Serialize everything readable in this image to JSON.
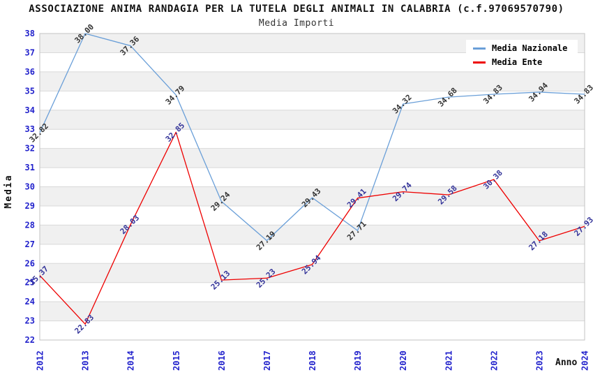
{
  "chart_data": {
    "type": "line",
    "title": "ASSOCIAZIONE ANIMA RANDAGIA PER LA TUTELA DEGLI ANIMALI IN CALABRIA (c.f.97069570790)",
    "subtitle": "Media Importi",
    "xlabel": "Anno",
    "ylabel": "Media",
    "categories": [
      "2012",
      "2013",
      "2014",
      "2015",
      "2016",
      "2017",
      "2018",
      "2019",
      "2020",
      "2021",
      "2022",
      "2023",
      "2024"
    ],
    "ylim": [
      22,
      38
    ],
    "ytick_step": 1,
    "grid": true,
    "legend_position": "top-right",
    "series": [
      {
        "name": "Media Nazionale",
        "color": "#6a9fd8",
        "label_color": "#333333",
        "values": [
          32.82,
          38.0,
          37.36,
          34.79,
          29.24,
          27.19,
          29.43,
          27.71,
          34.32,
          34.68,
          34.83,
          34.94,
          34.83
        ],
        "labels": [
          "32.82",
          "38.00",
          "37.36",
          "34.79",
          "29.24",
          "27.19",
          "29.43",
          "27.71",
          "34.32",
          "34.68",
          "34.83",
          "34.94",
          "34.83"
        ]
      },
      {
        "name": "Media Ente",
        "color": "#ee0000",
        "label_color": "#333399",
        "values": [
          25.37,
          22.83,
          28.03,
          32.85,
          25.13,
          25.23,
          25.94,
          29.41,
          29.74,
          29.58,
          30.38,
          27.18,
          27.93
        ],
        "labels": [
          "25.37",
          "22.83",
          "28.03",
          "32.85",
          "25.13",
          "25.23",
          "25.94",
          "29.41",
          "29.74",
          "29.58",
          "30.38",
          "27.18",
          "27.93"
        ]
      }
    ],
    "colors": {
      "axis_text": "#2222cc",
      "grid": "#d9d9d9",
      "band": "#f0f0f0",
      "plot_border": "#c3c3c3",
      "background": "#ffffff"
    }
  }
}
